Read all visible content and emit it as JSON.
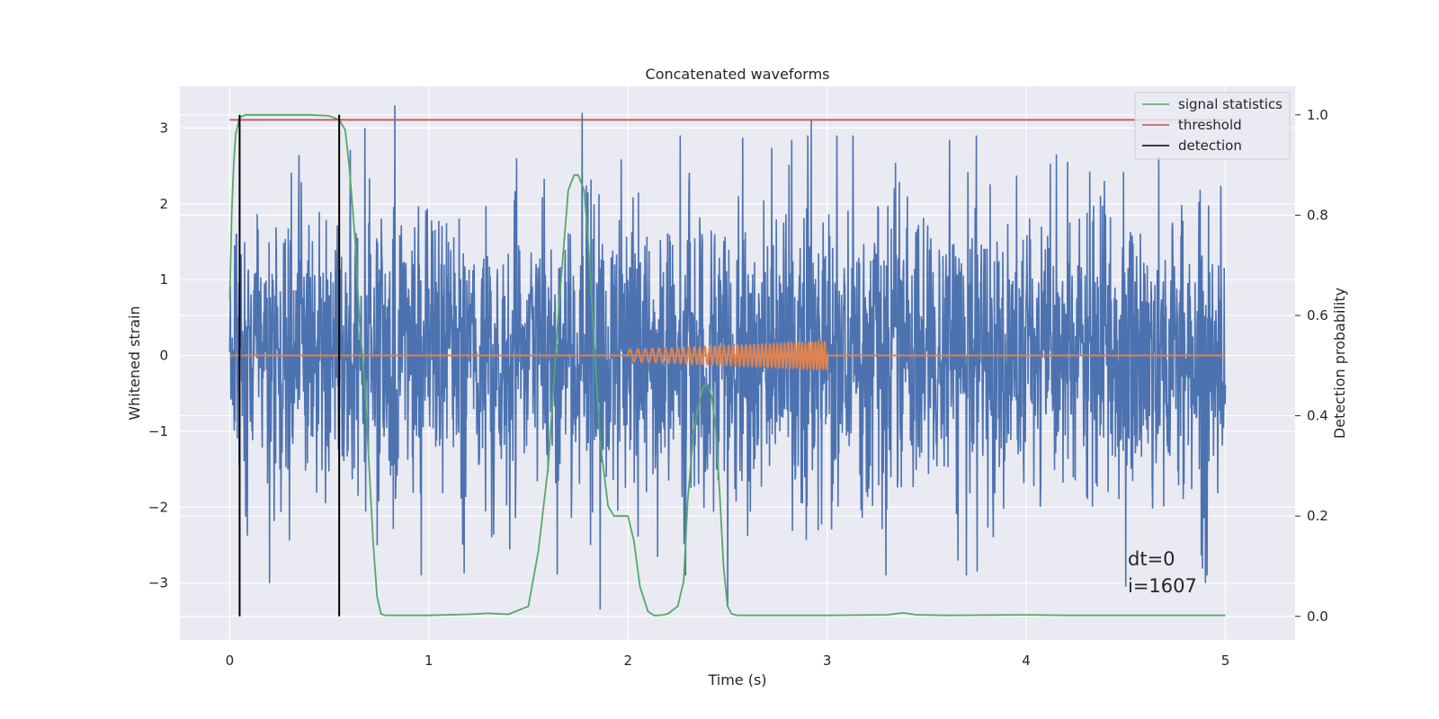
{
  "chart_data": {
    "type": "line",
    "title": "Concatenated waveforms",
    "xlabel": "Time (s)",
    "ylabel": "Whitened strain",
    "ylabel_right": "Detection probability",
    "xlim": [
      -0.25,
      5.35
    ],
    "ylim": [
      -3.75,
      3.55
    ],
    "ylim_right": [
      -0.047,
      1.057
    ],
    "x_ticks": [
      0,
      1,
      2,
      3,
      4,
      5
    ],
    "x_tick_labels": [
      "0",
      "1",
      "2",
      "3",
      "4",
      "5"
    ],
    "y_ticks": [
      3,
      2,
      1,
      0,
      -1,
      -2,
      -3
    ],
    "y_tick_labels": [
      "3",
      "2",
      "1",
      "0",
      "−1",
      "−2",
      "−3"
    ],
    "y2_ticks": [
      1.0,
      0.8,
      0.6,
      0.4,
      0.2,
      0.0
    ],
    "y2_tick_labels": [
      "1.0",
      "0.8",
      "0.6",
      "0.4",
      "0.2",
      "0.0"
    ],
    "grid": true,
    "legend_position": "top-right",
    "legend": [
      {
        "label": "signal statistics",
        "color": "#55a868"
      },
      {
        "label": "threshold",
        "color": "#c44e52"
      },
      {
        "label": "detection",
        "color": "#000000"
      }
    ],
    "noise_series": {
      "color": "#4c72b0",
      "x_range": [
        0,
        5
      ],
      "spikes": [
        {
          "x": 0.83,
          "y": 3.3
        },
        {
          "x": 1.77,
          "y": 3.2
        },
        {
          "x": 2.92,
          "y": 3.1
        },
        {
          "x": 3.05,
          "y": 2.9
        },
        {
          "x": 0.68,
          "y": 3.0
        },
        {
          "x": 1.86,
          "y": -3.35
        },
        {
          "x": 2.5,
          "y": -3.3
        },
        {
          "x": 0.2,
          "y": -3.0
        },
        {
          "x": 3.7,
          "y": -2.9
        },
        {
          "x": 4.9,
          "y": -3.0
        },
        {
          "x": 4.5,
          "y": -3.05
        }
      ]
    },
    "injected_signal": {
      "color": "#dd8452",
      "t_start": 2.0,
      "t_end": 3.0,
      "amp_start": 0.08,
      "amp_end": 0.18
    },
    "zero_line_color": "#dd8452",
    "signal_statistics": {
      "color": "#55a868",
      "axis": "right",
      "x": [
        0.0,
        0.01,
        0.02,
        0.03,
        0.05,
        0.08,
        0.1,
        0.2,
        0.4,
        0.5,
        0.55,
        0.58,
        0.6,
        0.63,
        0.65,
        0.68,
        0.7,
        0.72,
        0.74,
        0.76,
        0.78,
        0.8,
        1.0,
        1.2,
        1.3,
        1.4,
        1.5,
        1.55,
        1.6,
        1.65,
        1.7,
        1.73,
        1.75,
        1.78,
        1.8,
        1.83,
        1.86,
        1.9,
        1.93,
        1.96,
        2.0,
        2.03,
        2.06,
        2.1,
        2.13,
        2.16,
        2.2,
        2.25,
        2.28,
        2.3,
        2.33,
        2.36,
        2.38,
        2.4,
        2.42,
        2.44,
        2.46,
        2.48,
        2.5,
        2.52,
        2.55,
        2.6,
        3.0,
        3.3,
        3.38,
        3.45,
        3.6,
        4.0,
        4.2,
        5.0
      ],
      "y": [
        0.63,
        0.8,
        0.9,
        0.96,
        0.995,
        1.0,
        1.0,
        1.0,
        1.0,
        0.998,
        0.99,
        0.97,
        0.9,
        0.75,
        0.6,
        0.45,
        0.3,
        0.15,
        0.04,
        0.005,
        0.002,
        0.002,
        0.002,
        0.004,
        0.006,
        0.004,
        0.02,
        0.13,
        0.3,
        0.6,
        0.85,
        0.88,
        0.88,
        0.85,
        0.75,
        0.55,
        0.35,
        0.22,
        0.2,
        0.2,
        0.2,
        0.15,
        0.06,
        0.01,
        0.002,
        0.002,
        0.005,
        0.02,
        0.07,
        0.23,
        0.37,
        0.43,
        0.46,
        0.46,
        0.44,
        0.38,
        0.25,
        0.1,
        0.02,
        0.005,
        0.002,
        0.002,
        0.002,
        0.003,
        0.007,
        0.003,
        0.002,
        0.003,
        0.002,
        0.002
      ]
    },
    "threshold": {
      "value": 0.99,
      "x_range": [
        0.0,
        5.0
      ],
      "color": "#c44e52",
      "axis": "right"
    },
    "detections": {
      "x": [
        0.05,
        0.55
      ],
      "color": "#000000",
      "y_range_right": [
        0.0,
        1.0
      ]
    },
    "annotations": [
      "dt=0",
      "i=1607"
    ]
  }
}
